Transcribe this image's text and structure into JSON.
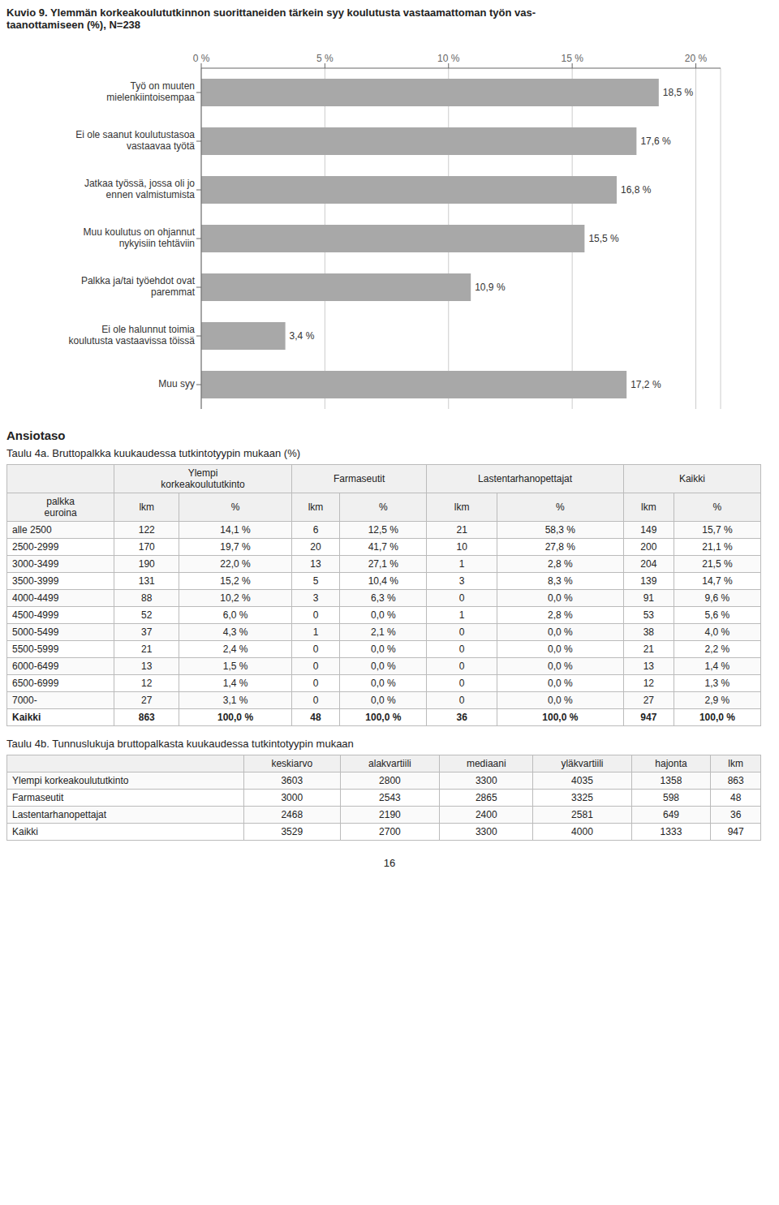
{
  "chart_data": [
    {
      "type": "bar",
      "title": "Kuvio 9. Ylemmän korkeakoulututkinnon suorittaneiden tärkein syy koulutusta vastaamattoman työn vas-\ntaanottamiseen (%), N=238",
      "orientation": "horizontal",
      "categories": [
        "Työ on muuten\nmielenkiintoisempaa",
        "Ei ole saanut koulutustasoa\nvastaavaa työtä",
        "Jatkaa työssä, jossa oli jo\nennen valmistumista",
        "Muu koulutus on ohjannut\nnykyisiin tehtäviin",
        "Palkka ja/tai työehdot ovat\nparemmat",
        "Ei ole halunnut toimia\nkoulutusta vastaavissa töissä",
        "Muu syy"
      ],
      "values": [
        18.5,
        17.6,
        16.8,
        15.5,
        10.9,
        3.4,
        17.2
      ],
      "value_labels": [
        "18,5 %",
        "17,6 %",
        "16,8 %",
        "15,5 %",
        "10,9 %",
        "3,4 %",
        "17,2 %"
      ],
      "color": "#a8a8a8",
      "xlim": [
        0,
        21
      ],
      "xticks": [
        {
          "value": 0,
          "label": "0 %"
        },
        {
          "value": 5,
          "label": "5 %"
        },
        {
          "value": 10,
          "label": "10 %"
        },
        {
          "value": 15,
          "label": "15 %"
        },
        {
          "value": 20,
          "label": "20 %"
        }
      ],
      "grid": true,
      "data_labels": true
    },
    {
      "type": "table",
      "annotations": [
        "Ansiotaso"
      ],
      "title": "Taulu 4a. Bruttopalkka kuukaudessa tutkintotyypin mukaan (%)",
      "column_groups": [
        {
          "label": "",
          "span": 1
        },
        {
          "label": "Ylempi\nkorkeakoulututkinto",
          "span": 2
        },
        {
          "label": "Farmaseutit",
          "span": 2
        },
        {
          "label": "Lastentarhanopettajat",
          "span": 2
        },
        {
          "label": "Kaikki",
          "span": 2
        }
      ],
      "headers": [
        "palkka\neuroina",
        "lkm",
        "%",
        "lkm",
        "%",
        "lkm",
        "%",
        "lkm",
        "%"
      ],
      "rows": [
        [
          "alle 2500",
          "122",
          "14,1 %",
          "6",
          "12,5 %",
          "21",
          "58,3 %",
          "149",
          "15,7 %"
        ],
        [
          "2500-2999",
          "170",
          "19,7 %",
          "20",
          "41,7 %",
          "10",
          "27,8 %",
          "200",
          "21,1 %"
        ],
        [
          "3000-3499",
          "190",
          "22,0 %",
          "13",
          "27,1 %",
          "1",
          "2,8 %",
          "204",
          "21,5 %"
        ],
        [
          "3500-3999",
          "131",
          "15,2 %",
          "5",
          "10,4 %",
          "3",
          "8,3 %",
          "139",
          "14,7 %"
        ],
        [
          "4000-4499",
          "88",
          "10,2 %",
          "3",
          "6,3 %",
          "0",
          "0,0 %",
          "91",
          "9,6 %"
        ],
        [
          "4500-4999",
          "52",
          "6,0 %",
          "0",
          "0,0 %",
          "1",
          "2,8 %",
          "53",
          "5,6 %"
        ],
        [
          "5000-5499",
          "37",
          "4,3 %",
          "1",
          "2,1 %",
          "0",
          "0,0 %",
          "38",
          "4,0 %"
        ],
        [
          "5500-5999",
          "21",
          "2,4 %",
          "0",
          "0,0 %",
          "0",
          "0,0 %",
          "21",
          "2,2 %"
        ],
        [
          "6000-6499",
          "13",
          "1,5 %",
          "0",
          "0,0 %",
          "0",
          "0,0 %",
          "13",
          "1,4 %"
        ],
        [
          "6500-6999",
          "12",
          "1,4 %",
          "0",
          "0,0 %",
          "0",
          "0,0 %",
          "12",
          "1,3 %"
        ],
        [
          "7000-",
          "27",
          "3,1 %",
          "0",
          "0,0 %",
          "0",
          "0,0 %",
          "27",
          "2,9 %"
        ],
        [
          "Kaikki",
          "863",
          "100,0 %",
          "48",
          "100,0 %",
          "36",
          "100,0 %",
          "947",
          "100,0 %"
        ]
      ]
    },
    {
      "type": "table",
      "title": "Taulu 4b. Tunnuslukuja bruttopalkasta kuukaudessa tutkintotyypin mukaan",
      "headers": [
        "",
        "keskiarvo",
        "alakvartiili",
        "mediaani",
        "yläkvartiili",
        "hajonta",
        "lkm"
      ],
      "rows": [
        [
          "Ylempi korkeakoulututkinto",
          "3603",
          "2800",
          "3300",
          "4035",
          "1358",
          "863"
        ],
        [
          "Farmaseutit",
          "3000",
          "2543",
          "2865",
          "3325",
          "598",
          "48"
        ],
        [
          "Lastentarhanopettajat",
          "2468",
          "2190",
          "2400",
          "2581",
          "649",
          "36"
        ],
        [
          "Kaikki",
          "3529",
          "2700",
          "3300",
          "4000",
          "1333",
          "947"
        ]
      ]
    }
  ],
  "page_number": "16"
}
